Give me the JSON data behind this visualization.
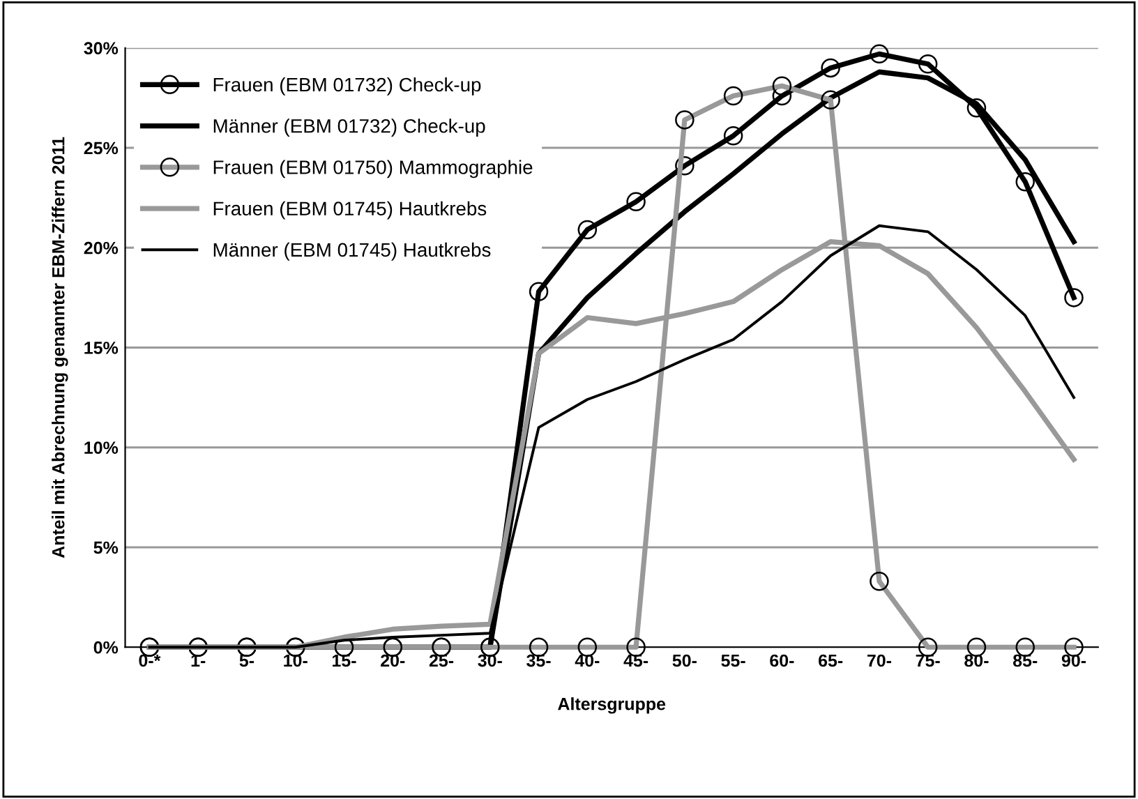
{
  "chart_data": {
    "type": "line",
    "xlabel": "Altersgruppe",
    "ylabel": "Anteil mit Abrechnung genannter EBM-Ziffern 2011",
    "categories": [
      "0-*",
      "1-",
      "5-",
      "10-",
      "15-",
      "20-",
      "25-",
      "30-",
      "35-",
      "40-",
      "45-",
      "50-",
      "55-",
      "60-",
      "65-",
      "70-",
      "75-",
      "80-",
      "85-",
      "90-"
    ],
    "series": [
      {
        "name": "Frauen (EBM 01732) Check-up",
        "color": "#000000",
        "marker": "circle",
        "values": [
          0,
          0,
          0,
          0,
          0,
          0,
          0,
          0,
          17.8,
          20.9,
          22.3,
          24.1,
          25.6,
          27.6,
          29.0,
          29.7,
          29.2,
          27.0,
          23.3,
          17.5
        ]
      },
      {
        "name": "Männer (EBM 01732) Check-up",
        "color": "#000000",
        "values": [
          0,
          0,
          0,
          0,
          0,
          0,
          0,
          0,
          14.7,
          17.5,
          19.7,
          21.8,
          23.7,
          25.7,
          27.5,
          28.8,
          28.5,
          27.2,
          24.4,
          20.3
        ]
      },
      {
        "name": "Frauen (EBM 01750) Mammographie",
        "color": "#999999",
        "marker": "circle",
        "values": [
          0,
          0,
          0,
          0,
          0,
          0,
          0,
          0,
          0,
          0,
          0,
          26.4,
          27.6,
          28.1,
          27.4,
          3.3,
          0,
          0,
          0,
          0
        ]
      },
      {
        "name": "Frauen (EBM 01745) Hautkrebs",
        "color": "#999999",
        "values": [
          0,
          0,
          0,
          0,
          0.5,
          0.9,
          1.05,
          1.15,
          14.7,
          16.5,
          16.2,
          16.7,
          17.3,
          18.9,
          20.3,
          20.1,
          18.7,
          16.0,
          12.8,
          9.4
        ]
      },
      {
        "name": "Männer (EBM 01745) Hautkrebs",
        "color": "#000000",
        "values": [
          0,
          0,
          0,
          0,
          0.35,
          0.5,
          0.6,
          0.7,
          11.0,
          12.4,
          13.3,
          14.4,
          15.4,
          17.3,
          19.6,
          21.1,
          20.8,
          18.9,
          16.6,
          12.5
        ]
      }
    ],
    "ylim": [
      0,
      30
    ],
    "yticks": [
      {
        "value": 0,
        "label": "0%"
      },
      {
        "value": 5,
        "label": "5%"
      },
      {
        "value": 10,
        "label": "10%"
      },
      {
        "value": 15,
        "label": "15%"
      },
      {
        "value": 20,
        "label": "20%"
      },
      {
        "value": 25,
        "label": "25%"
      },
      {
        "value": 30,
        "label": "30%"
      }
    ],
    "grid": "y",
    "legend": "top left",
    "line_style": "solid"
  }
}
